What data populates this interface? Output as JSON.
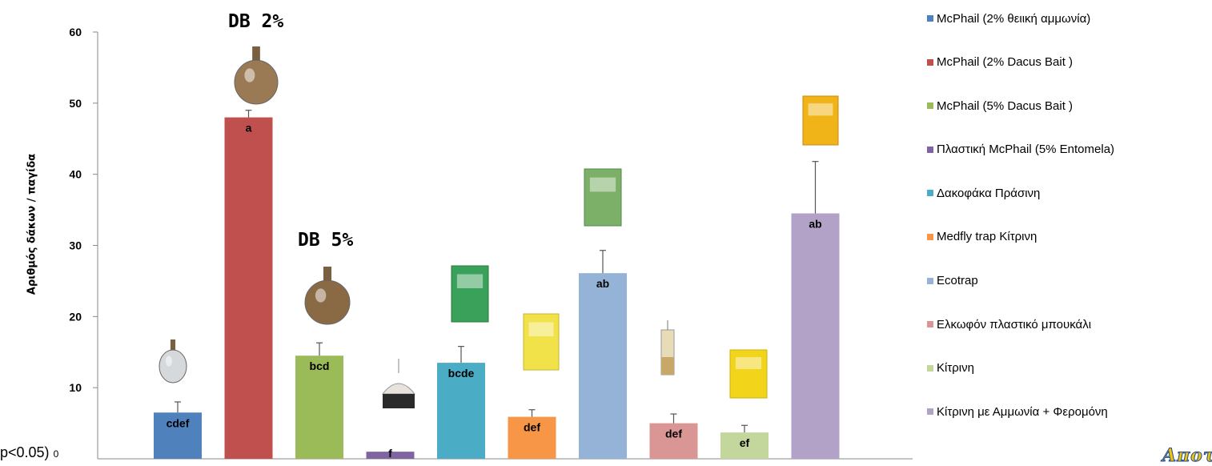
{
  "chart_data": {
    "type": "bar",
    "title": "",
    "ylabel": "Αριθμός δάκων / παγίδα",
    "ylim": [
      0,
      60
    ],
    "yticks": [
      10,
      20,
      30,
      40,
      50,
      60
    ],
    "bars": [
      {
        "name": "McPhail (2% θειική αμμωνία)",
        "value": 6.5,
        "error": 1.5,
        "letter": "cdef",
        "color": "#4f81bd"
      },
      {
        "name": "McPhail (2% Dacus Bait )",
        "value": 48.0,
        "error": 1.0,
        "letter": "a",
        "color": "#c0504d"
      },
      {
        "name": "McPhail (5% Dacus Bait )",
        "value": 14.5,
        "error": 1.8,
        "letter": "bcd",
        "color": "#9bbb59"
      },
      {
        "name": "Πλαστική McPhail (5% Entomela)",
        "value": 1.0,
        "error": 0.0,
        "letter": "f",
        "color": "#8064a2"
      },
      {
        "name": "Δακοφάκα  Πράσινη",
        "value": 13.5,
        "error": 2.3,
        "letter": "bcde",
        "color": "#4bacc6"
      },
      {
        "name": "Medfly trap  Κίτρινη",
        "value": 5.9,
        "error": 1.0,
        "letter": "def",
        "color": "#f79646"
      },
      {
        "name": "Ecotrap",
        "value": 26.1,
        "error": 3.2,
        "letter": "ab",
        "color": "#95b3d7"
      },
      {
        "name": "Ελκωφόν πλαστικό  μπουκάλι",
        "value": 5.0,
        "error": 1.3,
        "letter": "def",
        "color": "#d99694"
      },
      {
        "name": "Κίτρινη",
        "value": 3.7,
        "error": 1.0,
        "letter": "ef",
        "color": "#c3d69b"
      },
      {
        "name": "Κίτρινη με Αμμωνία  + Φερομόνη",
        "value": 34.5,
        "error": 7.3,
        "letter": "ab",
        "color": "#b2a2c7"
      }
    ],
    "legend_position": "right",
    "grid": false
  },
  "annotations": {
    "db2": "DB 2%",
    "db5": "DB 5%",
    "pvalue": "p<0.05)",
    "zero_label": "0",
    "brand": "Αποτ"
  }
}
